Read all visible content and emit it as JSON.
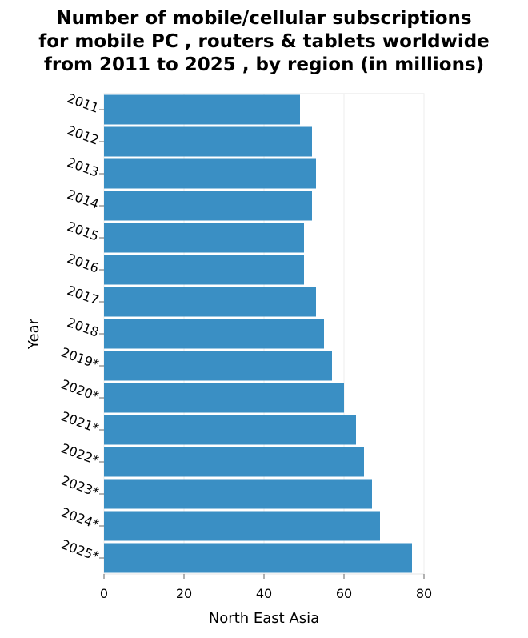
{
  "chart_data": {
    "type": "bar",
    "orientation": "horizontal",
    "title_lines": [
      "Number of mobile/cellular subscriptions",
      "for mobile PC , routers & tablets worldwide",
      "from 2011 to 2025 , by region (in millions)"
    ],
    "xlabel": "North East Asia",
    "ylabel": "Year",
    "categories": [
      "2011",
      "2012",
      "2013",
      "2014",
      "2015",
      "2016",
      "2017",
      "2018",
      "2019*",
      "2020*",
      "2021*",
      "2022*",
      "2023*",
      "2024*",
      "2025*"
    ],
    "values": [
      49,
      52,
      53,
      52,
      50,
      50,
      53,
      55,
      57,
      60,
      63,
      65,
      67,
      69,
      77
    ],
    "xlim": [
      0,
      80
    ],
    "xticks": [
      0,
      20,
      40,
      60,
      80
    ],
    "xtick_labels": [
      "0",
      "20",
      "40",
      "60",
      "80"
    ],
    "grid": "vertical",
    "bar_color": "#3a8fc4"
  }
}
